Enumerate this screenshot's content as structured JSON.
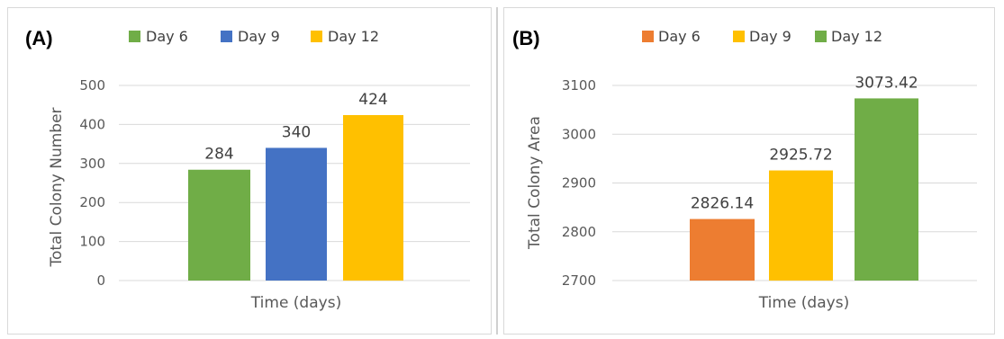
{
  "chart_data": [
    {
      "panel_label": "(A)",
      "type": "bar",
      "ylabel": "Total Colony Number",
      "xlabel": "Time (days)",
      "ylim": [
        0,
        500
      ],
      "yticks": [
        0,
        100,
        200,
        300,
        400,
        500
      ],
      "grid": true,
      "legend_position": "top",
      "series": [
        {
          "name": "Day 6",
          "value": 284,
          "label": "284",
          "color": "#70ad47"
        },
        {
          "name": "Day 9",
          "value": 340,
          "label": "340",
          "color": "#4472c4"
        },
        {
          "name": "Day 12",
          "value": 424,
          "label": "424",
          "color": "#ffc000"
        }
      ]
    },
    {
      "panel_label": "(B)",
      "type": "bar",
      "ylabel": "Total Colony Area",
      "xlabel": "Time (days)",
      "ylim": [
        2700,
        3100
      ],
      "yticks": [
        2700,
        2800,
        2900,
        3000,
        3100
      ],
      "grid": true,
      "legend_position": "top",
      "series": [
        {
          "name": "Day 6",
          "value": 2826.14,
          "label": "2826.14",
          "color": "#ed7d31"
        },
        {
          "name": "Day 9",
          "value": 2925.72,
          "label": "2925.72",
          "color": "#ffc000"
        },
        {
          "name": "Day 12",
          "value": 3073.42,
          "label": "3073.42",
          "color": "#70ad47"
        }
      ]
    }
  ]
}
